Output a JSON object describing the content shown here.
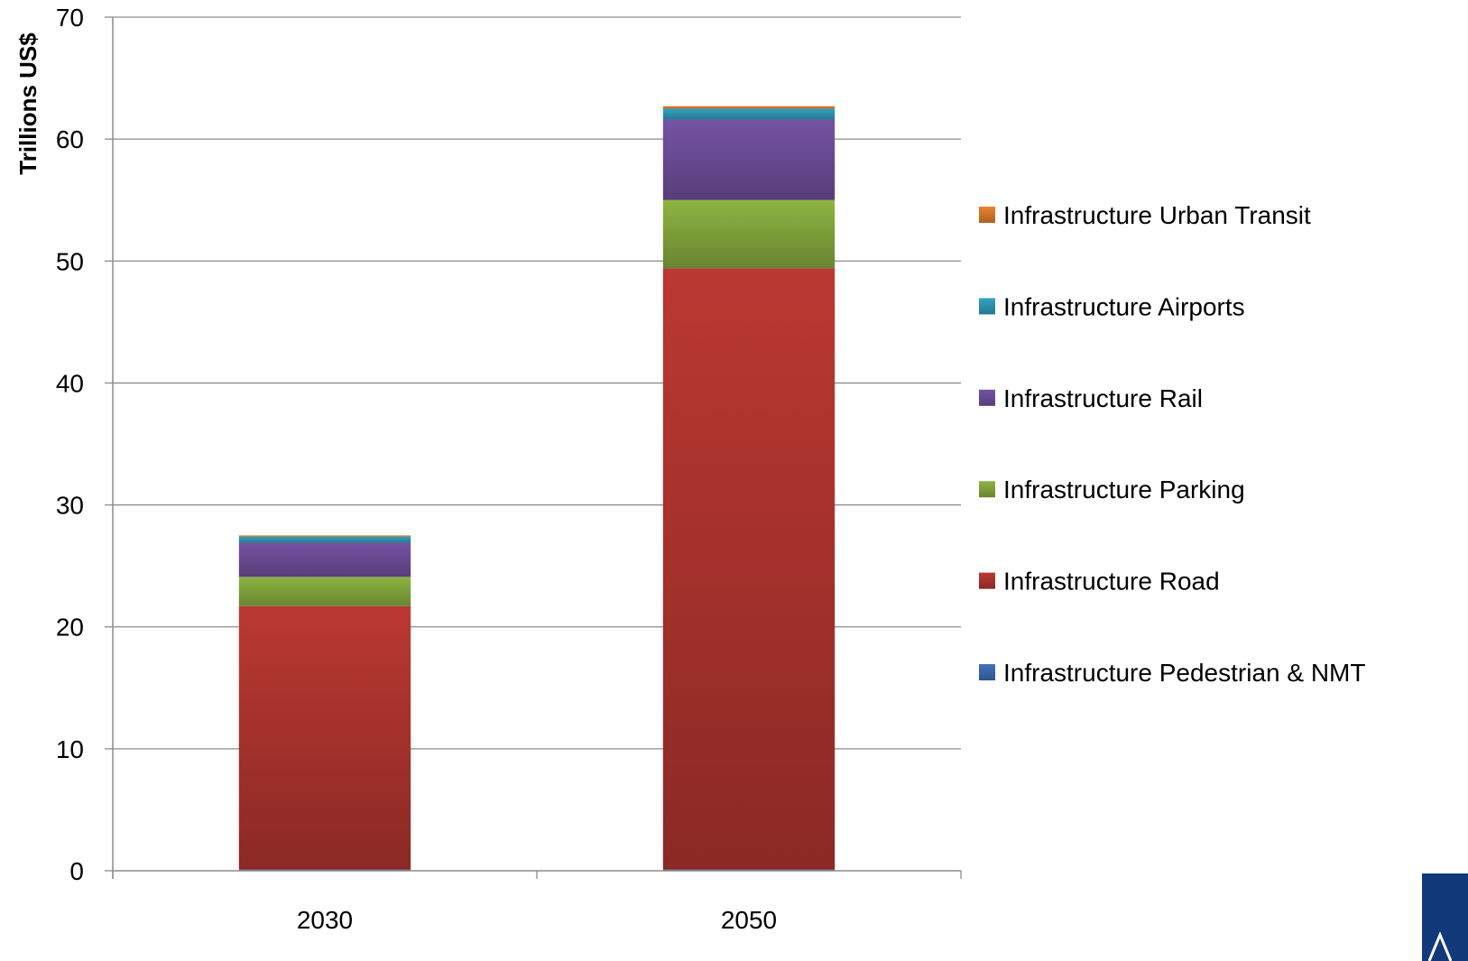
{
  "chart_data": {
    "type": "bar",
    "stacked": true,
    "categories": [
      "2030",
      "2050"
    ],
    "ylabel": "Trillions US$",
    "xlabel": "",
    "ylim": [
      0,
      70
    ],
    "yticks": [
      0,
      10,
      20,
      30,
      40,
      50,
      60,
      70
    ],
    "grid": true,
    "legend_position": "right",
    "series": [
      {
        "name": "Infrastructure Pedestrian & NMT",
        "values": [
          0.1,
          0.1
        ],
        "color": "#3e6db5"
      },
      {
        "name": "Infrastructure Road",
        "values": [
          21.6,
          49.3
        ],
        "color": "#b23530"
      },
      {
        "name": "Infrastructure Parking",
        "values": [
          2.4,
          5.6
        ],
        "color": "#86ab3f"
      },
      {
        "name": "Infrastructure Rail",
        "values": [
          2.8,
          6.6
        ],
        "color": "#6f4f9c"
      },
      {
        "name": "Infrastructure Airports",
        "values": [
          0.5,
          0.9
        ],
        "color": "#2f9ab8"
      },
      {
        "name": "Infrastructure Urban Transit",
        "values": [
          0.1,
          0.2
        ],
        "color": "#e07c2a"
      }
    ]
  }
}
